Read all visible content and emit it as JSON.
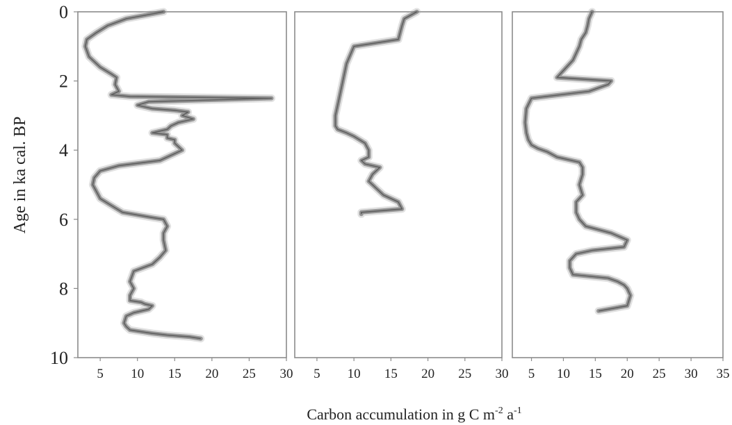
{
  "chart_data": {
    "type": "line",
    "ylabel": "Age in ka cal. BP",
    "xlabel": {
      "text": "Carbon accumulation in g C m",
      "sup1": "-2",
      "mid": " a",
      "sup2": "-1"
    },
    "ylim": [
      0,
      10
    ],
    "y_ticks": [
      "0",
      "2",
      "4",
      "6",
      "8",
      "10"
    ],
    "y_inverted": true,
    "grid": false,
    "legend": "none",
    "line_colors": [
      "#3a3a3a",
      "#6e6e6e",
      "#a8a8a8"
    ],
    "panels": [
      {
        "xlim": [
          2,
          30
        ],
        "x_ticks": [
          "5",
          "10",
          "15",
          "20",
          "25",
          "30"
        ],
        "series": [
          {
            "x": [
              13.5,
              8.5,
              6.0,
              4.5,
              3.2,
              3.0,
              3.5,
              5.0,
              6.5,
              7.2,
              7.0,
              7.5,
              6.5,
              9.0,
              28.0,
              11.5,
              10.0,
              11.0,
              12.0,
              15.0,
              16.8,
              16.0,
              17.5,
              15.5,
              14.5,
              14.0,
              13.0,
              12.0,
              14.0,
              14.0,
              15.0,
              15.0,
              16.0,
              13.0,
              7.5,
              5.0,
              4.2,
              4.0,
              4.5,
              5.0,
              6.5,
              8.0,
              12.0,
              13.5,
              14.0,
              13.5,
              13.5,
              13.8,
              13.0,
              12.0,
              9.5,
              9.0,
              9.5,
              9.0,
              9.0,
              10.5,
              11.0,
              12.0,
              11.5,
              9.5,
              8.5,
              8.2,
              8.5,
              9.0,
              10.5,
              12.0,
              14.0,
              17.0,
              18.5
            ],
            "y": [
              0.0,
              0.2,
              0.4,
              0.6,
              0.8,
              1.0,
              1.3,
              1.6,
              1.8,
              1.9,
              2.1,
              2.3,
              2.4,
              2.45,
              2.5,
              2.6,
              2.7,
              2.75,
              2.8,
              2.85,
              2.9,
              3.0,
              3.1,
              3.2,
              3.3,
              3.4,
              3.45,
              3.5,
              3.55,
              3.65,
              3.7,
              3.8,
              4.0,
              4.3,
              4.45,
              4.6,
              4.8,
              5.0,
              5.2,
              5.4,
              5.6,
              5.8,
              5.95,
              6.0,
              6.2,
              6.4,
              6.6,
              6.9,
              7.1,
              7.3,
              7.5,
              7.8,
              8.0,
              8.2,
              8.35,
              8.4,
              8.45,
              8.5,
              8.6,
              8.7,
              8.8,
              9.0,
              9.1,
              9.2,
              9.25,
              9.3,
              9.35,
              9.4,
              9.45
            ]
          }
        ]
      },
      {
        "xlim": [
          2,
          30
        ],
        "x_ticks": [
          "5",
          "10",
          "15",
          "20",
          "25",
          "30"
        ],
        "series": [
          {
            "x": [
              18.5,
              16.8,
              16.5,
              16.0,
              10.0,
              9.0,
              8.5,
              8.0,
              7.5,
              7.5,
              7.8,
              9.0,
              10.0,
              11.5,
              12.0,
              12.0,
              11.0,
              11.5,
              13.5,
              12.5,
              12.0,
              12.5,
              13.0,
              14.0,
              16.0,
              16.5,
              11.0,
              11.0
            ],
            "y": [
              0.0,
              0.2,
              0.4,
              0.8,
              1.0,
              1.5,
              2.0,
              2.5,
              3.0,
              3.3,
              3.4,
              3.5,
              3.6,
              3.8,
              4.0,
              4.2,
              4.3,
              4.4,
              4.5,
              4.7,
              4.9,
              5.0,
              5.1,
              5.3,
              5.5,
              5.7,
              5.8,
              5.85
            ]
          }
        ]
      },
      {
        "xlim": [
          2,
          35
        ],
        "x_ticks": [
          "5",
          "10",
          "15",
          "20",
          "25",
          "30",
          "35"
        ],
        "series": [
          {
            "x": [
              14.5,
              14.0,
              13.8,
              13.5,
              12.8,
              12.5,
              12.0,
              11.5,
              10.5,
              9.5,
              9.0,
              17.5,
              17.0,
              14.0,
              5.0,
              4.2,
              4.0,
              4.2,
              4.5,
              5.0,
              6.0,
              7.5,
              9.0,
              12.5,
              13.0,
              13.0,
              12.5,
              13.0,
              12.0,
              12.0,
              12.5,
              13.5,
              17.5,
              20.0,
              19.5,
              14.5,
              12.0,
              11.0,
              11.0,
              11.5,
              17.0,
              18.5,
              19.5,
              20.0,
              20.5,
              20.0,
              15.5
            ],
            "y": [
              0.0,
              0.2,
              0.4,
              0.6,
              0.8,
              1.0,
              1.2,
              1.4,
              1.6,
              1.8,
              1.9,
              2.0,
              2.1,
              2.3,
              2.5,
              2.8,
              3.2,
              3.5,
              3.7,
              3.85,
              3.95,
              4.05,
              4.2,
              4.35,
              4.5,
              4.7,
              5.0,
              5.3,
              5.5,
              5.8,
              6.0,
              6.2,
              6.4,
              6.6,
              6.8,
              6.9,
              7.0,
              7.2,
              7.4,
              7.6,
              7.7,
              7.8,
              7.9,
              8.0,
              8.2,
              8.5,
              8.65
            ]
          }
        ]
      }
    ]
  }
}
